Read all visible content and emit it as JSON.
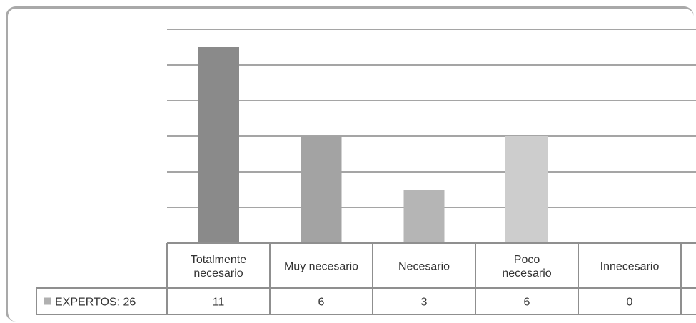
{
  "chart_data": {
    "type": "bar",
    "categories": [
      [
        "Totalmente",
        "necesario"
      ],
      [
        "Muy necesario"
      ],
      [
        "Necesario"
      ],
      [
        "Poco",
        "necesario"
      ],
      [
        "Innecesario"
      ]
    ],
    "series": [
      {
        "name": "EXPERTOS: 26",
        "values": [
          11,
          6,
          3,
          6,
          0
        ],
        "colors": [
          "#8a8a8a",
          "#a3a3a3",
          "#b5b5b5",
          "#cdcdcd",
          "#dddddd"
        ]
      }
    ],
    "ylim": [
      0,
      12
    ],
    "gridlines": true,
    "legend_position": "table-left",
    "data_table": true,
    "title": "",
    "xlabel": "",
    "ylabel": ""
  }
}
